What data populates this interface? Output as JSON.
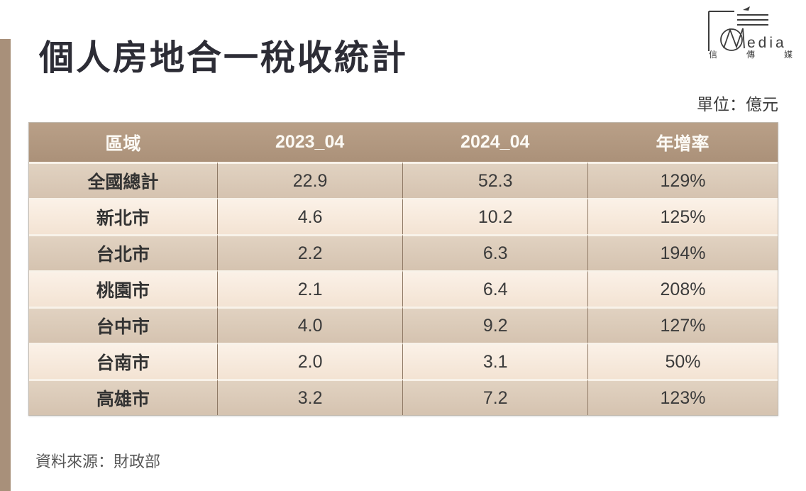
{
  "page": {
    "title": "個人房地合一稅收統計",
    "unit_label": "單位：億元",
    "source_label": "資料來源：財政部"
  },
  "logo": {
    "media_suffix": "edia",
    "cjk": [
      "信",
      "傳",
      "媒"
    ]
  },
  "chart_data": {
    "type": "table",
    "title": "個人房地合一稅收統計",
    "unit": "億元",
    "columns": [
      "區域",
      "2023_04",
      "2024_04",
      "年增率"
    ],
    "rows": [
      [
        "全國總計",
        "22.9",
        "52.3",
        "129%"
      ],
      [
        "新北市",
        "4.6",
        "10.2",
        "125%"
      ],
      [
        "台北市",
        "2.2",
        "6.3",
        "194%"
      ],
      [
        "桃園市",
        "2.1",
        "6.4",
        "208%"
      ],
      [
        "台中市",
        "4.0",
        "9.2",
        "127%"
      ],
      [
        "台南市",
        "2.0",
        "3.1",
        "50%"
      ],
      [
        "高雄市",
        "3.2",
        "7.2",
        "123%"
      ]
    ],
    "source": "財政部"
  },
  "colors": {
    "accent_bar": "#a8907a",
    "header_bg": "#b09780",
    "row_dark": "#d8c6b4",
    "row_light": "#f6e8db",
    "header_text": "#fcfaf5",
    "cell_text": "#3b3b3b",
    "title_text": "#2d2d36"
  }
}
